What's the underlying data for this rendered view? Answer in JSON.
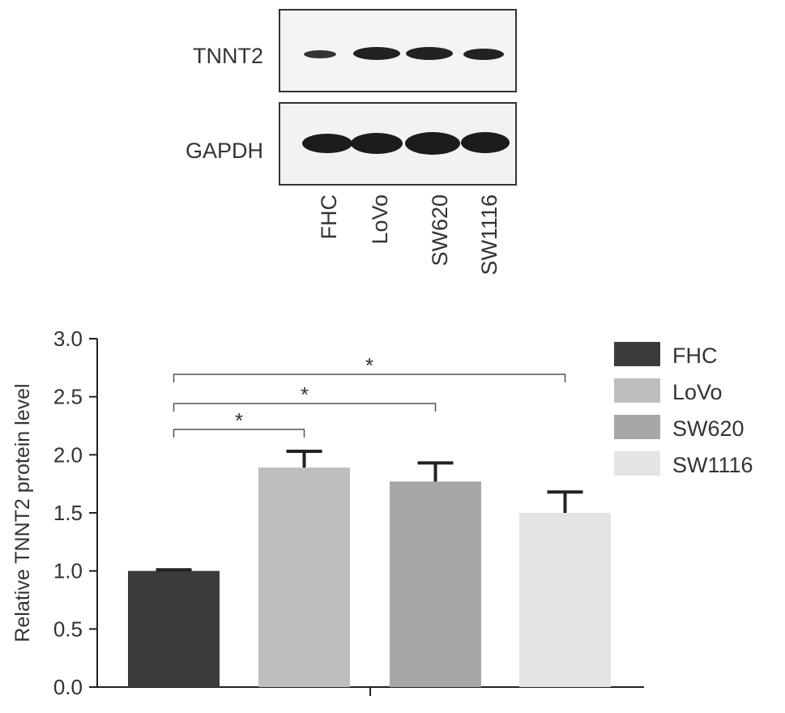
{
  "blot": {
    "rows": [
      "TNNT2",
      "GAPDH"
    ],
    "lanes": [
      "FHC",
      "LoVo",
      "SW620",
      "SW1116"
    ]
  },
  "chart_data": {
    "type": "bar",
    "y_label": "Relative TNNT2 protein level",
    "categories": [
      "FHC",
      "LoVo",
      "SW620",
      "SW1116"
    ],
    "values": [
      1.0,
      1.89,
      1.77,
      1.5
    ],
    "errors": [
      0.01,
      0.14,
      0.16,
      0.18
    ],
    "colors": [
      "#3b3b3b",
      "#bebebe",
      "#a7a7a7",
      "#e4e4e4"
    ],
    "ylim": [
      0,
      3
    ],
    "yticks": [
      {
        "value": 0,
        "label": "0.0"
      },
      0.5,
      {
        "value": 1,
        "label": "1.0"
      },
      1.5,
      {
        "value": 2,
        "label": "2.0"
      },
      2.5,
      {
        "value": 3,
        "label": "3.0"
      }
    ],
    "annotations": [
      "*",
      "*",
      "*"
    ],
    "legend": "right"
  }
}
